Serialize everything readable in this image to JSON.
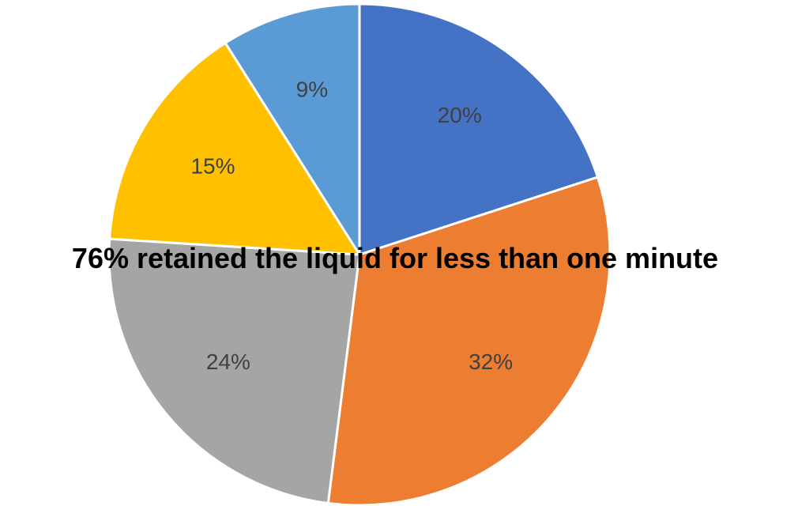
{
  "chart_data": {
    "type": "pie",
    "title": "",
    "start_angle_deg": 0,
    "direction": "clockwise",
    "slices": [
      {
        "value": 20,
        "label": "20%",
        "color": "#4472C4"
      },
      {
        "value": 32,
        "label": "32%",
        "color": "#ED7D31"
      },
      {
        "value": 24,
        "label": "24%",
        "color": "#A5A5A5"
      },
      {
        "value": 15,
        "label": "15%",
        "color": "#FFC000"
      },
      {
        "value": 9,
        "label": "9%",
        "color": "#5B9BD5"
      }
    ],
    "annotation": "76% retained the liquid for less than one minute"
  }
}
